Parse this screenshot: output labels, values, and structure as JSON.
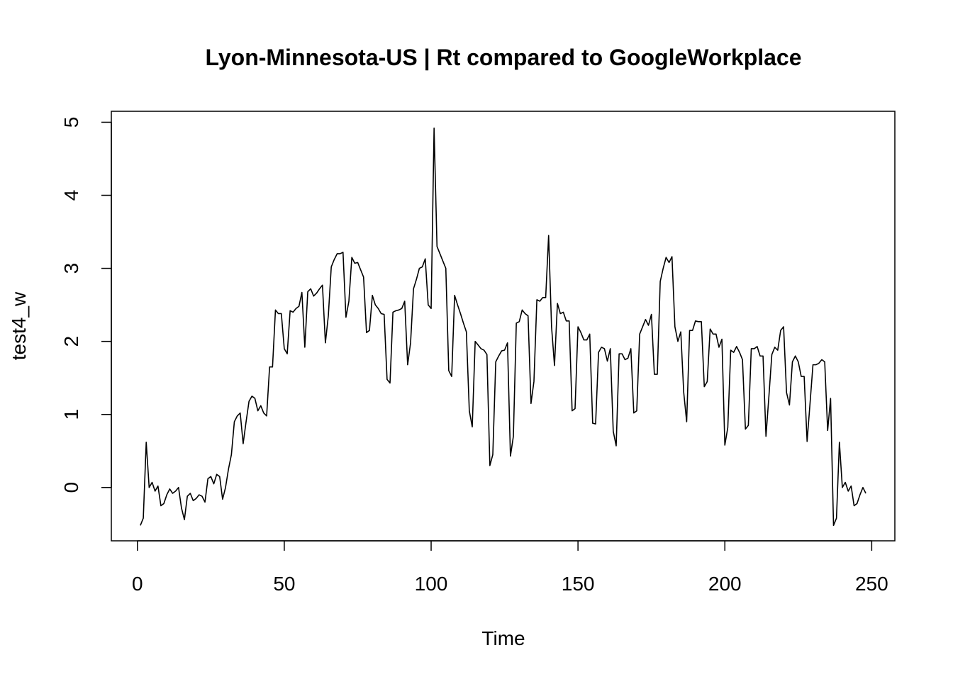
{
  "chart_data": {
    "type": "line",
    "title": "Lyon-Minnesota-US | Rt compared to GoogleWorkplace",
    "x_label": "Time",
    "y_label": "test4_w",
    "color": "#000000",
    "x": [
      1,
      2,
      3,
      4,
      5,
      6,
      7,
      8,
      9,
      10,
      11,
      12,
      13,
      14,
      15,
      16,
      17,
      18,
      19,
      20,
      21,
      22,
      23,
      24,
      25,
      26,
      27,
      28,
      29,
      30,
      31,
      32,
      33,
      34,
      35,
      36,
      37,
      38,
      39,
      40,
      41,
      42,
      43,
      44,
      45,
      46,
      47,
      48,
      49,
      50,
      51,
      52,
      53,
      54,
      55,
      56,
      57,
      58,
      59,
      60,
      61,
      62,
      63,
      64,
      65,
      66,
      67,
      68,
      69,
      70,
      71,
      72,
      73,
      74,
      75,
      76,
      77,
      78,
      79,
      80,
      81,
      82,
      83,
      84,
      85,
      86,
      87,
      88,
      89,
      90,
      91,
      92,
      93,
      94,
      95,
      96,
      97,
      98,
      99,
      100,
      101,
      102,
      103,
      104,
      105,
      106,
      107,
      108,
      109,
      110,
      111,
      112,
      113,
      114,
      115,
      116,
      117,
      118,
      119,
      120,
      121,
      122,
      123,
      124,
      125,
      126,
      127,
      128,
      129,
      130,
      131,
      132,
      133,
      134,
      135,
      136,
      137,
      138,
      139,
      140,
      141,
      142,
      143,
      144,
      145,
      146,
      147,
      148,
      149,
      150,
      151,
      152,
      153,
      154,
      155,
      156,
      157,
      158,
      159,
      160,
      161,
      162,
      163,
      164,
      165,
      166,
      167,
      168,
      169,
      170,
      171,
      172,
      173,
      174,
      175,
      176,
      177,
      178,
      179,
      180,
      181,
      182,
      183,
      184,
      185,
      186,
      187,
      188,
      189,
      190,
      191,
      192,
      193,
      194,
      195,
      196,
      197,
      198,
      199,
      200,
      201,
      202,
      203,
      204,
      205,
      206,
      207,
      208,
      209,
      210,
      211,
      212,
      213,
      214,
      215,
      216,
      217,
      218,
      219,
      220,
      221,
      222,
      223,
      224,
      225,
      226,
      227,
      228,
      229,
      230,
      231,
      232,
      233,
      234,
      235,
      236,
      237,
      238,
      239,
      240,
      241,
      242,
      243,
      244,
      245,
      246,
      247,
      248
    ],
    "values": [
      -0.52,
      -0.42,
      0.62,
      0.0,
      0.07,
      -0.05,
      0.02,
      -0.25,
      -0.22,
      -0.1,
      -0.02,
      -0.08,
      -0.05,
      0.0,
      -0.28,
      -0.44,
      -0.12,
      -0.08,
      -0.18,
      -0.15,
      -0.1,
      -0.12,
      -0.2,
      0.12,
      0.15,
      0.05,
      0.18,
      0.15,
      -0.16,
      0.0,
      0.25,
      0.45,
      0.9,
      0.98,
      1.02,
      0.6,
      0.9,
      1.18,
      1.25,
      1.22,
      1.05,
      1.12,
      1.02,
      0.98,
      1.65,
      1.65,
      2.43,
      2.38,
      2.38,
      1.9,
      1.83,
      2.42,
      2.4,
      2.45,
      2.48,
      2.67,
      1.92,
      2.68,
      2.72,
      2.62,
      2.66,
      2.72,
      2.77,
      1.98,
      2.35,
      3.02,
      3.12,
      3.2,
      3.2,
      3.22,
      2.33,
      2.55,
      3.15,
      3.07,
      3.08,
      2.98,
      2.88,
      2.12,
      2.15,
      2.63,
      2.5,
      2.45,
      2.38,
      2.37,
      1.48,
      1.43,
      2.4,
      2.42,
      2.43,
      2.45,
      2.55,
      1.68,
      1.98,
      2.72,
      2.85,
      3.0,
      3.02,
      3.13,
      2.5,
      2.45,
      4.92,
      3.3,
      3.2,
      3.1,
      3.0,
      1.6,
      1.52,
      2.63,
      2.5,
      2.38,
      2.25,
      2.13,
      1.05,
      0.83,
      2.0,
      1.95,
      1.9,
      1.88,
      1.82,
      0.3,
      0.45,
      1.72,
      1.8,
      1.87,
      1.88,
      1.98,
      0.43,
      0.7,
      2.25,
      2.27,
      2.43,
      2.38,
      2.35,
      1.15,
      1.45,
      2.57,
      2.55,
      2.6,
      2.6,
      3.45,
      2.2,
      1.67,
      2.52,
      2.38,
      2.4,
      2.28,
      2.28,
      1.05,
      1.08,
      2.2,
      2.12,
      2.02,
      2.02,
      2.1,
      0.88,
      0.87,
      1.85,
      1.92,
      1.9,
      1.73,
      1.9,
      0.77,
      0.57,
      1.83,
      1.83,
      1.75,
      1.77,
      1.9,
      1.02,
      1.05,
      2.1,
      2.2,
      2.3,
      2.22,
      2.37,
      1.55,
      1.55,
      2.82,
      3.0,
      3.15,
      3.08,
      3.16,
      2.2,
      2.0,
      2.13,
      1.3,
      0.9,
      2.15,
      2.15,
      2.28,
      2.27,
      2.27,
      1.38,
      1.45,
      2.17,
      2.1,
      2.1,
      1.92,
      2.03,
      0.58,
      0.82,
      1.88,
      1.85,
      1.93,
      1.85,
      1.75,
      0.8,
      0.85,
      1.9,
      1.9,
      1.93,
      1.8,
      1.8,
      0.7,
      1.25,
      1.82,
      1.92,
      1.88,
      2.15,
      2.2,
      1.3,
      1.13,
      1.72,
      1.8,
      1.72,
      1.52,
      1.52,
      0.63,
      1.15,
      1.68,
      1.68,
      1.7,
      1.75,
      1.72,
      0.78,
      1.22,
      -0.52,
      -0.42,
      0.62,
      0.0,
      0.07,
      -0.05,
      0.02,
      -0.25,
      -0.22,
      -0.1,
      0.0,
      -0.08
    ],
    "xlim": [
      -8.88,
      257.88
    ],
    "ylim": [
      -0.73,
      5.15
    ],
    "xticks": [
      0,
      50,
      100,
      150,
      200,
      250
    ],
    "yticks": [
      0,
      1,
      2,
      3,
      4,
      5
    ]
  }
}
